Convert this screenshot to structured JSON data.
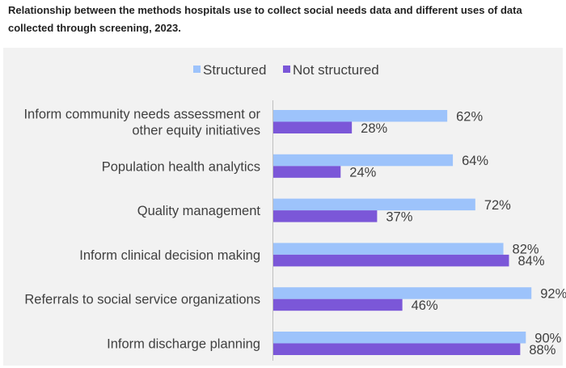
{
  "title": "Relationship between the methods hospitals use to collect social needs data and different uses of data collected through screening, 2023.",
  "colors": {
    "structured": "#9dc3fb",
    "not_structured": "#7b57d8",
    "background": "#f2f2f2",
    "axis": "#bfbfbf"
  },
  "chart_data": {
    "type": "bar",
    "orientation": "horizontal",
    "categories": [
      [
        "Inform community needs assessment or",
        "other equity initiatives"
      ],
      [
        "Population health analytics"
      ],
      [
        "Quality management"
      ],
      [
        "Inform clinical decision making"
      ],
      [
        "Referrals to social service organizations"
      ],
      [
        "Inform discharge planning"
      ]
    ],
    "series": [
      {
        "name": "Structured",
        "values": [
          62,
          64,
          72,
          82,
          92,
          90
        ]
      },
      {
        "name": "Not structured",
        "values": [
          28,
          24,
          37,
          84,
          46,
          88
        ]
      }
    ],
    "value_format": "{v}%",
    "xlim": [
      0,
      100
    ],
    "legend_position": "top-center",
    "grid": false
  }
}
